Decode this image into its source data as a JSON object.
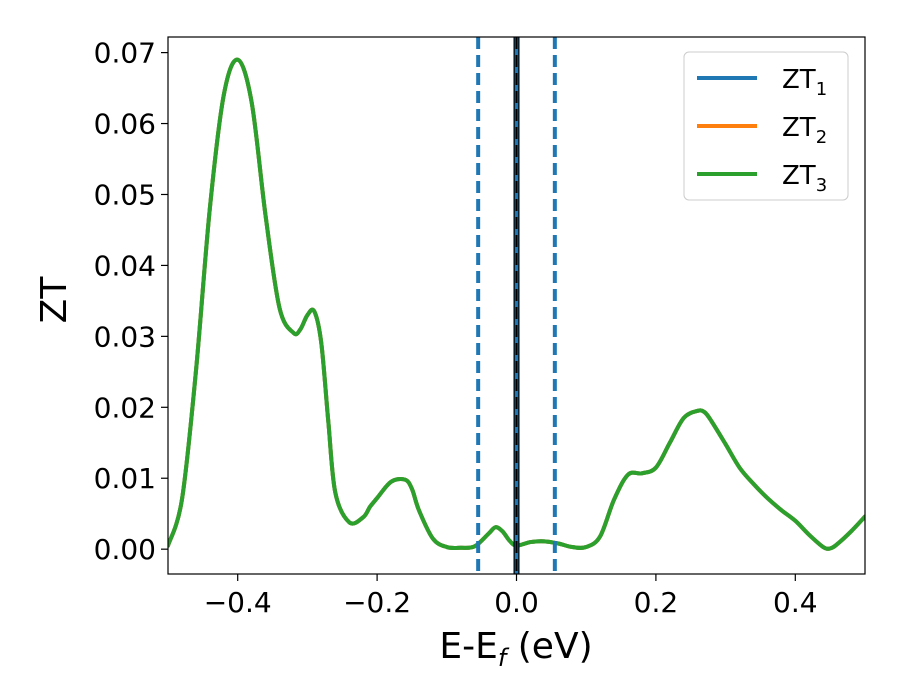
{
  "chart_data": {
    "type": "line",
    "xlabel": "E-E",
    "xlabel_sub": "f",
    "xlabel_unit": " (eV)",
    "ylabel": "ZT",
    "xlim": [
      -0.5,
      0.5
    ],
    "ylim": [
      -0.0035,
      0.0722
    ],
    "x_ticks": [
      -0.4,
      -0.2,
      0.0,
      0.2,
      0.4
    ],
    "x_tick_labels": [
      "−0.4",
      "−0.2",
      "0.0",
      "0.2",
      "0.4"
    ],
    "y_ticks": [
      0.0,
      0.01,
      0.02,
      0.03,
      0.04,
      0.05,
      0.06,
      0.07
    ],
    "y_tick_labels": [
      "0.00",
      "0.01",
      "0.02",
      "0.03",
      "0.04",
      "0.05",
      "0.06",
      "0.07"
    ],
    "grid": false,
    "legend_position": "top-right",
    "series": [
      {
        "name": "ZT",
        "sub": "1",
        "color": "#1f77b4",
        "x": [
          -0.5,
          -0.48,
          -0.46,
          -0.44,
          -0.42,
          -0.4,
          -0.38,
          -0.36,
          -0.34,
          -0.32,
          -0.31,
          -0.3,
          -0.29,
          -0.28,
          -0.27,
          -0.26,
          -0.24,
          -0.22,
          -0.21,
          -0.2,
          -0.18,
          -0.16,
          -0.15,
          -0.14,
          -0.12,
          -0.1,
          -0.08,
          -0.06,
          -0.04,
          -0.03,
          -0.02,
          -0.01,
          0.0,
          0.02,
          0.04,
          0.06,
          0.08,
          0.1,
          0.12,
          0.14,
          0.16,
          0.18,
          0.2,
          0.22,
          0.24,
          0.26,
          0.27,
          0.28,
          0.3,
          0.32,
          0.34,
          0.36,
          0.38,
          0.4,
          0.42,
          0.44,
          0.45,
          0.46,
          0.48,
          0.5
        ],
        "y": [
          0.0005,
          0.007,
          0.025,
          0.048,
          0.064,
          0.069,
          0.063,
          0.047,
          0.034,
          0.0305,
          0.031,
          0.033,
          0.0335,
          0.029,
          0.018,
          0.008,
          0.0038,
          0.0045,
          0.006,
          0.0072,
          0.0095,
          0.0098,
          0.0085,
          0.0055,
          0.0015,
          0.0003,
          0.0002,
          0.0004,
          0.0022,
          0.0031,
          0.0025,
          0.0012,
          0.0005,
          0.001,
          0.0011,
          0.0008,
          0.0003,
          0.0003,
          0.0018,
          0.007,
          0.0105,
          0.0107,
          0.0115,
          0.015,
          0.0185,
          0.0195,
          0.0193,
          0.018,
          0.0148,
          0.0115,
          0.0092,
          0.0072,
          0.0055,
          0.004,
          0.002,
          0.0003,
          0.0001,
          0.0007,
          0.0025,
          0.0046
        ]
      },
      {
        "name": "ZT",
        "sub": "2",
        "color": "#ff7f0e",
        "x": [
          -0.5,
          -0.48,
          -0.46,
          -0.44,
          -0.42,
          -0.4,
          -0.38,
          -0.36,
          -0.34,
          -0.32,
          -0.31,
          -0.3,
          -0.29,
          -0.28,
          -0.27,
          -0.26,
          -0.24,
          -0.22,
          -0.21,
          -0.2,
          -0.18,
          -0.16,
          -0.15,
          -0.14,
          -0.12,
          -0.1,
          -0.08,
          -0.06,
          -0.04,
          -0.03,
          -0.02,
          -0.01,
          0.0,
          0.02,
          0.04,
          0.06,
          0.08,
          0.1,
          0.12,
          0.14,
          0.16,
          0.18,
          0.2,
          0.22,
          0.24,
          0.26,
          0.27,
          0.28,
          0.3,
          0.32,
          0.34,
          0.36,
          0.38,
          0.4,
          0.42,
          0.44,
          0.45,
          0.46,
          0.48,
          0.5
        ],
        "y": [
          0.0005,
          0.007,
          0.025,
          0.048,
          0.064,
          0.069,
          0.063,
          0.047,
          0.034,
          0.0305,
          0.031,
          0.033,
          0.0335,
          0.029,
          0.018,
          0.008,
          0.0038,
          0.0045,
          0.006,
          0.0072,
          0.0095,
          0.0098,
          0.0085,
          0.0055,
          0.0015,
          0.0003,
          0.0002,
          0.0004,
          0.0022,
          0.0031,
          0.0025,
          0.0012,
          0.0005,
          0.001,
          0.0011,
          0.0008,
          0.0003,
          0.0003,
          0.0018,
          0.007,
          0.0105,
          0.0107,
          0.0115,
          0.015,
          0.0185,
          0.0195,
          0.0193,
          0.018,
          0.0148,
          0.0115,
          0.0092,
          0.0072,
          0.0055,
          0.004,
          0.002,
          0.0003,
          0.0001,
          0.0007,
          0.0025,
          0.0046
        ]
      },
      {
        "name": "ZT",
        "sub": "3",
        "color": "#2ca02c",
        "x": [
          -0.5,
          -0.48,
          -0.46,
          -0.44,
          -0.42,
          -0.4,
          -0.38,
          -0.36,
          -0.34,
          -0.32,
          -0.31,
          -0.3,
          -0.29,
          -0.28,
          -0.27,
          -0.26,
          -0.24,
          -0.22,
          -0.21,
          -0.2,
          -0.18,
          -0.16,
          -0.15,
          -0.14,
          -0.12,
          -0.1,
          -0.08,
          -0.06,
          -0.04,
          -0.03,
          -0.02,
          -0.01,
          0.0,
          0.02,
          0.04,
          0.06,
          0.08,
          0.1,
          0.12,
          0.14,
          0.16,
          0.18,
          0.2,
          0.22,
          0.24,
          0.26,
          0.27,
          0.28,
          0.3,
          0.32,
          0.34,
          0.36,
          0.38,
          0.4,
          0.42,
          0.44,
          0.45,
          0.46,
          0.48,
          0.5
        ],
        "y": [
          0.0005,
          0.007,
          0.025,
          0.048,
          0.064,
          0.069,
          0.063,
          0.047,
          0.034,
          0.0305,
          0.031,
          0.033,
          0.0335,
          0.029,
          0.018,
          0.008,
          0.0038,
          0.0045,
          0.006,
          0.0072,
          0.0095,
          0.0098,
          0.0085,
          0.0055,
          0.0015,
          0.0003,
          0.0002,
          0.0004,
          0.0022,
          0.0031,
          0.0025,
          0.0012,
          0.0005,
          0.001,
          0.0011,
          0.0008,
          0.0003,
          0.0003,
          0.0018,
          0.007,
          0.0105,
          0.0107,
          0.0115,
          0.015,
          0.0185,
          0.0195,
          0.0193,
          0.018,
          0.0148,
          0.0115,
          0.0092,
          0.0072,
          0.0055,
          0.004,
          0.002,
          0.0003,
          0.0001,
          0.0007,
          0.0025,
          0.0046
        ]
      }
    ],
    "vlines": [
      {
        "x": -0.055,
        "color": "#1f77b4",
        "style": "dashed"
      },
      {
        "x": 0.055,
        "color": "#1f77b4",
        "style": "dashed"
      },
      {
        "x": 0.0,
        "color": "#000000",
        "style": "solid-thick"
      },
      {
        "x": 0.0,
        "color": "#1f77b4",
        "style": "solid"
      },
      {
        "x": 0.0,
        "color": "#000000",
        "style": "dashed"
      }
    ]
  }
}
